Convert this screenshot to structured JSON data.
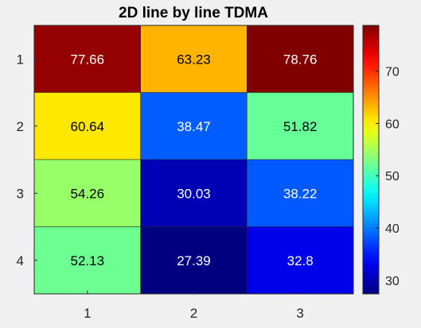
{
  "chart_data": {
    "type": "heatmap",
    "title": "2D line by line TDMA",
    "xlabel": "",
    "ylabel": "",
    "x_categories": [
      "1",
      "2",
      "3"
    ],
    "y_categories": [
      "1",
      "2",
      "3",
      "4"
    ],
    "values": [
      [
        77.66,
        63.23,
        78.76
      ],
      [
        60.64,
        38.47,
        51.82
      ],
      [
        54.26,
        30.03,
        38.22
      ],
      [
        52.13,
        27.39,
        32.8
      ]
    ],
    "value_labels": [
      [
        "77.66",
        "63.23",
        "78.76"
      ],
      [
        "60.64",
        "38.47",
        "51.82"
      ],
      [
        "54.26",
        "30.03",
        "38.22"
      ],
      [
        "52.13",
        "27.39",
        "32.8"
      ]
    ],
    "colormap": "jet",
    "clim": [
      27.39,
      78.76
    ],
    "colorbar": {
      "ticks": [
        30,
        40,
        50,
        60,
        70
      ],
      "tick_labels": [
        "30",
        "40",
        "50",
        "60",
        "70"
      ],
      "placement": "right"
    },
    "grid": false
  },
  "colors": {
    "background": "#f0f0f0",
    "cell_border": "#262626",
    "text_dark": "#000000",
    "text_light": "#ffffff"
  }
}
